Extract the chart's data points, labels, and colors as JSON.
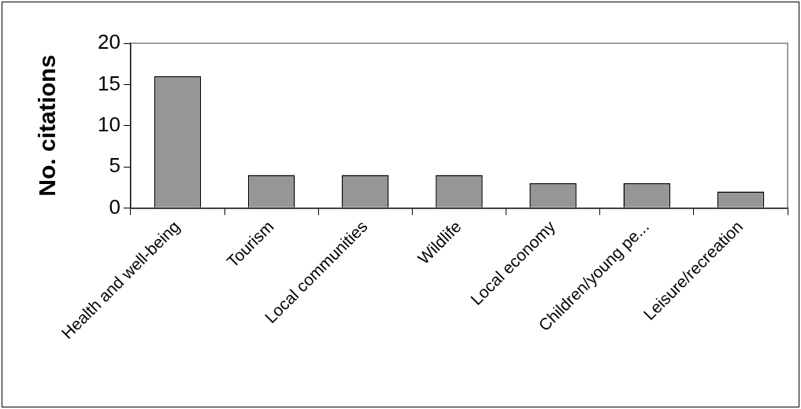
{
  "chart_data": {
    "type": "bar",
    "ylabel": "No. citations",
    "categories": [
      "Health and well-being",
      "Tourism",
      "Local communities",
      "Wildlife",
      "Local economy",
      "Children/young pe...",
      "Leisure/recreation"
    ],
    "values": [
      16,
      4,
      4,
      4,
      3,
      3,
      2
    ],
    "color": "#969696",
    "ylim": [
      0,
      20
    ],
    "yticks": [
      0,
      5,
      10,
      15,
      20
    ],
    "grid": false,
    "legend": false
  }
}
